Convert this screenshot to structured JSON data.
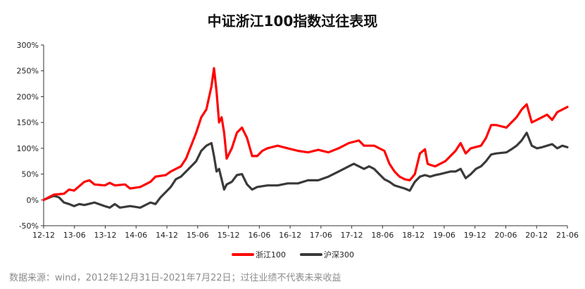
{
  "page": {
    "source_note": "数据来源：wind，2012年12月31日-2021年7月22日；过往业绩不代表未来收益"
  },
  "colors": {
    "zhejiang100": "#ff0000",
    "hs300": "#3a3a3a",
    "axis": "#333333"
  },
  "chart_data": {
    "type": "line",
    "title": "中证浙江100指数过往表现",
    "xlabel": "",
    "ylabel": "",
    "ylim": [
      -0.5,
      3.0
    ],
    "y_ticks": [
      "300%",
      "250%",
      "200%",
      "150%",
      "100%",
      "50%",
      "0%",
      "-50%"
    ],
    "y_tick_values": [
      3.0,
      2.5,
      2.0,
      1.5,
      1.0,
      0.5,
      0.0,
      -0.5
    ],
    "x_ticks": [
      "12-12",
      "13-06",
      "13-12",
      "14-06",
      "14-12",
      "15-06",
      "15-12",
      "16-06",
      "16-12",
      "17-06",
      "17-12",
      "18-06",
      "18-12",
      "19-06",
      "19-12",
      "20-06",
      "20-12",
      "21-06"
    ],
    "x_range": [
      0,
      103
    ],
    "legend_position": "bottom-center",
    "grid": false,
    "series": [
      {
        "name": "浙江100",
        "color": "#ff0000",
        "points": [
          [
            0,
            0
          ],
          [
            2,
            0.1
          ],
          [
            4,
            0.12
          ],
          [
            5,
            0.2
          ],
          [
            6,
            0.18
          ],
          [
            8,
            0.35
          ],
          [
            9,
            0.38
          ],
          [
            10,
            0.3
          ],
          [
            12,
            0.28
          ],
          [
            13,
            0.33
          ],
          [
            14,
            0.28
          ],
          [
            16,
            0.3
          ],
          [
            17,
            0.22
          ],
          [
            19,
            0.25
          ],
          [
            21,
            0.35
          ],
          [
            22,
            0.45
          ],
          [
            24,
            0.48
          ],
          [
            25,
            0.55
          ],
          [
            26,
            0.6
          ],
          [
            27,
            0.65
          ],
          [
            28,
            0.8
          ],
          [
            29,
            1.05
          ],
          [
            30,
            1.3
          ],
          [
            31,
            1.6
          ],
          [
            32,
            1.75
          ],
          [
            33,
            2.2
          ],
          [
            33.5,
            2.55
          ],
          [
            34,
            2.1
          ],
          [
            34.5,
            1.5
          ],
          [
            35,
            1.6
          ],
          [
            35.5,
            1.3
          ],
          [
            36,
            0.8
          ],
          [
            37,
            1.0
          ],
          [
            38,
            1.3
          ],
          [
            39,
            1.4
          ],
          [
            40,
            1.2
          ],
          [
            41,
            0.85
          ],
          [
            42,
            0.85
          ],
          [
            43,
            0.95
          ],
          [
            44,
            1.0
          ],
          [
            46,
            1.05
          ],
          [
            48,
            1.0
          ],
          [
            50,
            0.95
          ],
          [
            52,
            0.92
          ],
          [
            54,
            0.97
          ],
          [
            56,
            0.92
          ],
          [
            58,
            1.0
          ],
          [
            60,
            1.1
          ],
          [
            62,
            1.15
          ],
          [
            63,
            1.05
          ],
          [
            65,
            1.05
          ],
          [
            67,
            0.95
          ],
          [
            68,
            0.7
          ],
          [
            69,
            0.55
          ],
          [
            70,
            0.45
          ],
          [
            71,
            0.4
          ],
          [
            72,
            0.38
          ],
          [
            73,
            0.5
          ],
          [
            74,
            0.9
          ],
          [
            75,
            0.98
          ],
          [
            75.5,
            0.7
          ],
          [
            76,
            0.68
          ],
          [
            77,
            0.65
          ],
          [
            78,
            0.7
          ],
          [
            79,
            0.75
          ],
          [
            80,
            0.85
          ],
          [
            81,
            0.95
          ],
          [
            82,
            1.1
          ],
          [
            83,
            0.9
          ],
          [
            84,
            1.0
          ],
          [
            86,
            1.05
          ],
          [
            87,
            1.2
          ],
          [
            88,
            1.45
          ],
          [
            89,
            1.45
          ],
          [
            91,
            1.4
          ],
          [
            92,
            1.5
          ],
          [
            93,
            1.6
          ],
          [
            94,
            1.75
          ],
          [
            95,
            1.85
          ],
          [
            96,
            1.5
          ],
          [
            97,
            1.55
          ],
          [
            98,
            1.6
          ],
          [
            99,
            1.65
          ],
          [
            100,
            1.55
          ],
          [
            101,
            1.7
          ],
          [
            102,
            1.75
          ],
          [
            103,
            1.8
          ]
        ]
      },
      {
        "name": "沪深300",
        "color": "#3a3a3a",
        "points": [
          [
            0,
            0
          ],
          [
            2,
            0.08
          ],
          [
            3,
            0.05
          ],
          [
            4,
            -0.05
          ],
          [
            5,
            -0.08
          ],
          [
            6,
            -0.12
          ],
          [
            7,
            -0.08
          ],
          [
            8,
            -0.1
          ],
          [
            10,
            -0.05
          ],
          [
            12,
            -0.12
          ],
          [
            13,
            -0.15
          ],
          [
            14,
            -0.08
          ],
          [
            15,
            -0.15
          ],
          [
            17,
            -0.12
          ],
          [
            19,
            -0.15
          ],
          [
            21,
            -0.05
          ],
          [
            22,
            -0.08
          ],
          [
            23,
            0.05
          ],
          [
            24,
            0.15
          ],
          [
            25,
            0.25
          ],
          [
            26,
            0.4
          ],
          [
            27,
            0.45
          ],
          [
            28,
            0.55
          ],
          [
            29,
            0.65
          ],
          [
            30,
            0.75
          ],
          [
            31,
            0.95
          ],
          [
            32,
            1.05
          ],
          [
            33,
            1.1
          ],
          [
            33.5,
            0.85
          ],
          [
            34,
            0.55
          ],
          [
            34.5,
            0.6
          ],
          [
            35,
            0.4
          ],
          [
            35.5,
            0.2
          ],
          [
            36,
            0.3
          ],
          [
            37,
            0.35
          ],
          [
            38,
            0.48
          ],
          [
            39,
            0.5
          ],
          [
            40,
            0.3
          ],
          [
            41,
            0.2
          ],
          [
            42,
            0.25
          ],
          [
            44,
            0.28
          ],
          [
            46,
            0.28
          ],
          [
            48,
            0.32
          ],
          [
            50,
            0.32
          ],
          [
            52,
            0.38
          ],
          [
            54,
            0.38
          ],
          [
            56,
            0.45
          ],
          [
            58,
            0.55
          ],
          [
            60,
            0.65
          ],
          [
            61,
            0.7
          ],
          [
            62,
            0.65
          ],
          [
            63,
            0.6
          ],
          [
            64,
            0.65
          ],
          [
            65,
            0.6
          ],
          [
            66,
            0.5
          ],
          [
            67,
            0.4
          ],
          [
            68,
            0.35
          ],
          [
            69,
            0.28
          ],
          [
            70,
            0.25
          ],
          [
            71,
            0.22
          ],
          [
            72,
            0.18
          ],
          [
            73,
            0.35
          ],
          [
            74,
            0.45
          ],
          [
            75,
            0.48
          ],
          [
            76,
            0.45
          ],
          [
            77,
            0.48
          ],
          [
            78,
            0.5
          ],
          [
            80,
            0.55
          ],
          [
            81,
            0.55
          ],
          [
            82,
            0.6
          ],
          [
            83,
            0.42
          ],
          [
            84,
            0.5
          ],
          [
            85,
            0.6
          ],
          [
            86,
            0.65
          ],
          [
            87,
            0.75
          ],
          [
            88,
            0.88
          ],
          [
            89,
            0.9
          ],
          [
            91,
            0.92
          ],
          [
            92,
            0.98
          ],
          [
            93,
            1.05
          ],
          [
            94,
            1.15
          ],
          [
            95,
            1.3
          ],
          [
            96,
            1.05
          ],
          [
            97,
            1.0
          ],
          [
            98,
            1.02
          ],
          [
            99,
            1.05
          ],
          [
            100,
            1.08
          ],
          [
            101,
            1.0
          ],
          [
            102,
            1.05
          ],
          [
            103,
            1.02
          ]
        ]
      }
    ]
  }
}
